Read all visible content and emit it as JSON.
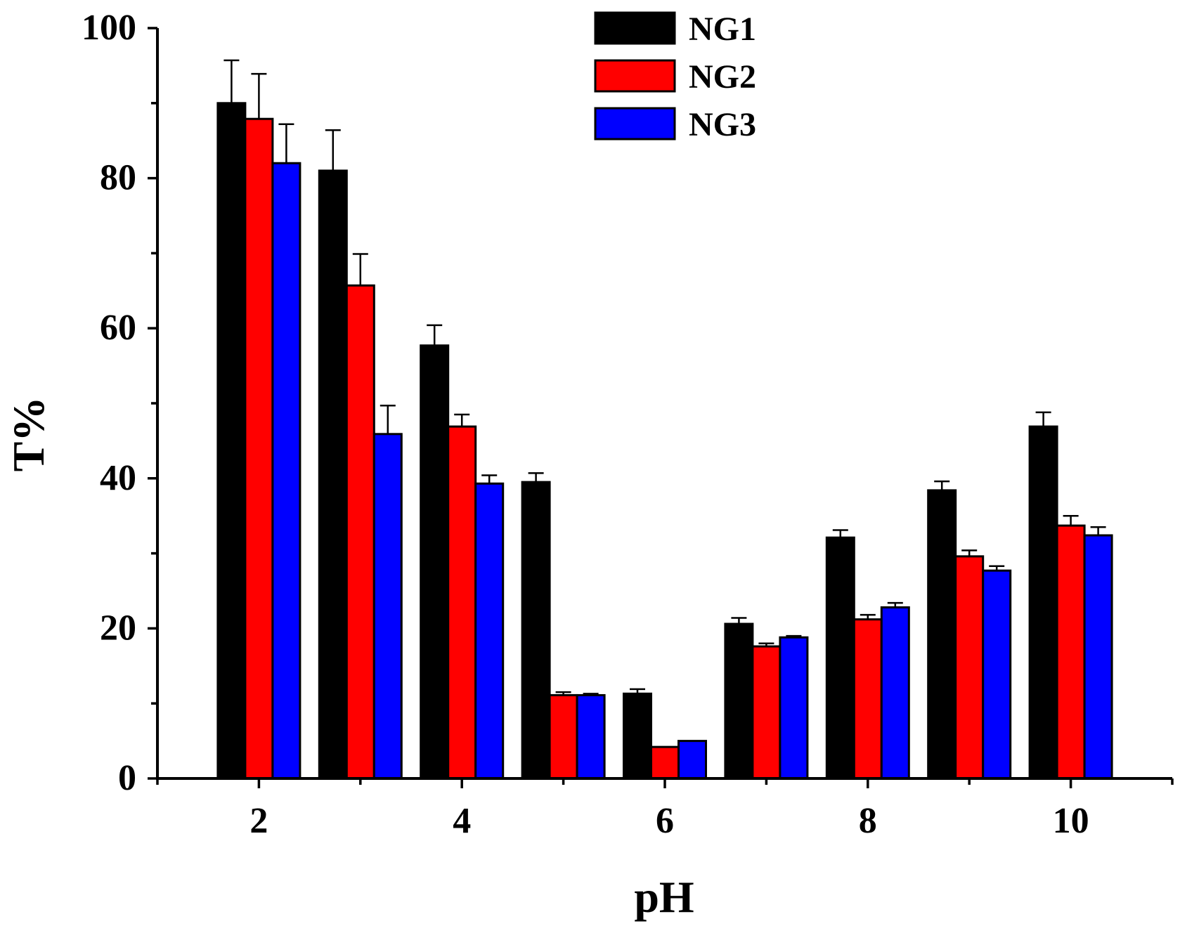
{
  "chart_data": {
    "type": "bar",
    "title": "",
    "xlabel": "pH",
    "ylabel": "T%",
    "categories": [
      "2",
      "3",
      "4",
      "5",
      "6",
      "7",
      "8",
      "9",
      "10"
    ],
    "x_tick_labels": [
      "2",
      "4",
      "6",
      "8",
      "10"
    ],
    "y_tick_labels": [
      "0",
      "20",
      "40",
      "60",
      "80",
      "100"
    ],
    "ylim": [
      0,
      100
    ],
    "xlim": [
      1,
      11
    ],
    "grid": false,
    "legend_position": "top-center",
    "series": [
      {
        "name": "NG1",
        "color": "#000000",
        "values": [
          90.0,
          81.0,
          57.7,
          39.5,
          11.3,
          20.6,
          32.1,
          38.4,
          46.9
        ],
        "errors": [
          5.7,
          5.4,
          2.7,
          1.2,
          0.6,
          0.8,
          1.0,
          1.2,
          1.9
        ]
      },
      {
        "name": "NG2",
        "color": "#ff0000",
        "values": [
          87.9,
          65.7,
          46.9,
          11.1,
          4.2,
          17.6,
          21.2,
          29.6,
          33.7
        ],
        "errors": [
          6.0,
          4.2,
          1.6,
          0.4,
          0,
          0.4,
          0.6,
          0.8,
          1.3
        ]
      },
      {
        "name": "NG3",
        "color": "#0000ff",
        "values": [
          82.0,
          45.9,
          39.3,
          11.1,
          5.0,
          18.8,
          22.8,
          27.7,
          32.4
        ],
        "errors": [
          5.2,
          3.8,
          1.1,
          0.2,
          0,
          0.2,
          0.6,
          0.6,
          1.1
        ]
      }
    ]
  }
}
